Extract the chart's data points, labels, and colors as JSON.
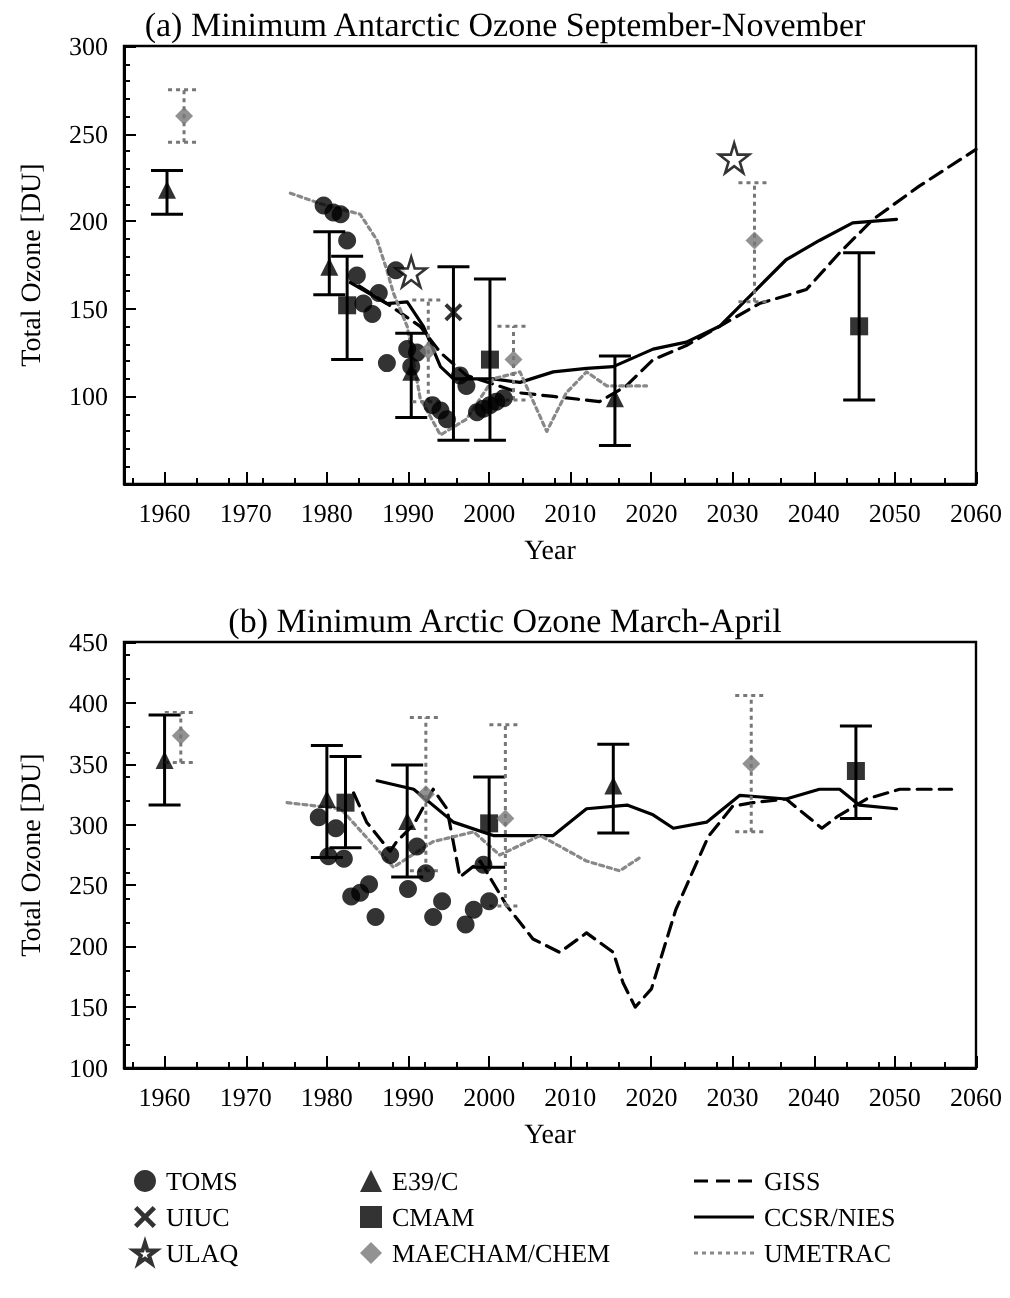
{
  "chart_data": [
    {
      "type": "scatter",
      "title": "(a) Minimum Antarctic Ozone September-November",
      "xlabel": "Year",
      "ylabel": "Total Ozone [DU]",
      "xlim": [
        1955,
        2060
      ],
      "xticks": [
        1960,
        1970,
        1980,
        1990,
        2000,
        2010,
        2020,
        2030,
        2040,
        2050,
        2060
      ],
      "ylim": [
        50,
        300
      ],
      "yticks": [
        100,
        150,
        200,
        250,
        300
      ],
      "legend": "bottom",
      "series": [
        {
          "name": "TOMS",
          "marker": "circle",
          "color": "#000000",
          "x": [
            1979.6,
            1980.8,
            1981.7,
            1982.5,
            1983.7,
            1984.5,
            1985.6,
            1986.4,
            1988.5,
            1987.4,
            1989.9,
            1991.1,
            1990.4,
            1993,
            1994,
            1994.8,
            1996.4,
            1997.2,
            1998.5,
            1999.3,
            2000.1,
            2000.9,
            2001.8
          ],
          "values": [
            209,
            205,
            204,
            189,
            169,
            153,
            147,
            159,
            172,
            119,
            127,
            125,
            117,
            95,
            92,
            87,
            112,
            106,
            91,
            93,
            95,
            97,
            99
          ]
        },
        {
          "name": "UIUC",
          "marker": "cross",
          "color": "#000000",
          "x": [
            1995.6
          ],
          "values": [
            148
          ],
          "errors": [
            [
              75,
              174
            ]
          ]
        },
        {
          "name": "ULAQ",
          "marker": "star",
          "color": "#000000",
          "x": [
            1990.4,
            2030.2
          ],
          "values": [
            171,
            236
          ]
        },
        {
          "name": "E39/C",
          "marker": "triangle",
          "color": "#000000",
          "x": [
            1960.3,
            1980.3,
            1990.4,
            2015.5
          ],
          "values": [
            218,
            174,
            114,
            99
          ],
          "errors": [
            [
              204,
              229
            ],
            [
              158,
              194
            ],
            [
              88,
              136
            ],
            [
              72,
              123
            ]
          ]
        },
        {
          "name": "CMAM",
          "marker": "square",
          "color": "#000000",
          "x": [
            1982.5,
            2000.1,
            2045.6
          ],
          "values": [
            152,
            121,
            140
          ],
          "errors": [
            [
              121,
              180
            ],
            [
              75,
              167
            ],
            [
              98,
              182
            ]
          ]
        },
        {
          "name": "MAECHAM/CHEM",
          "marker": "diamond",
          "color": "#777777",
          "line_style": "dotted",
          "x": [
            1962.4,
            1992.5,
            2003,
            2032.7
          ],
          "values": [
            260,
            126,
            121,
            189
          ],
          "errors": [
            [
              245,
              275
            ],
            [
              97,
              155
            ],
            [
              98,
              140
            ],
            [
              154,
              222
            ]
          ]
        },
        {
          "name": "GISS",
          "type": "line",
          "line_style": "dashed",
          "color": "#000000",
          "x": [
            1984,
            1987.4,
            1991.5,
            1994,
            1997.2,
            2003.8,
            2007.9,
            2013.6,
            2016.9,
            2020.2,
            2024.3,
            2028.4,
            2033.3,
            2039.1,
            2043.2,
            2047.3,
            2053,
            2060
          ],
          "values": [
            163,
            153,
            140,
            125,
            112,
            102,
            100,
            97,
            106,
            121,
            129,
            140,
            153,
            161,
            182,
            201,
            220,
            241
          ]
        },
        {
          "name": "CCSR/NIES",
          "type": "line",
          "line_style": "solid",
          "color": "#000000",
          "x": [
            1982.9,
            1987.4,
            1989.9,
            1991.9,
            1994,
            1995.6,
            2000.5,
            2003.8,
            2007.9,
            2012,
            2015.3,
            2020.2,
            2024.3,
            2028.4,
            2032.5,
            2036.6,
            2040.7,
            2044.8,
            2050.2
          ],
          "values": [
            165,
            153,
            154,
            140,
            117,
            110,
            110,
            108,
            114,
            116,
            117,
            127,
            131,
            140,
            159,
            178,
            189,
            199,
            201
          ]
        },
        {
          "name": "UMETRAC",
          "type": "line",
          "line_style": "dotted",
          "color": "#888888",
          "x": [
            1975.5,
            1979.2,
            1984.1,
            1986.2,
            1987.4,
            1988.2,
            1989.9,
            1991.5,
            1994,
            1997.2,
            2000.5,
            2003.8,
            2007.1,
            2009.5,
            2012,
            2014.5,
            2019.4
          ],
          "values": [
            216,
            210,
            204,
            189,
            172,
            159,
            140,
            99,
            78,
            87,
            110,
            114,
            80,
            102,
            114,
            106,
            106
          ]
        }
      ]
    },
    {
      "type": "scatter",
      "title": "(b) Minimum Arctic Ozone March-April",
      "xlabel": "Year",
      "ylabel": "Total Ozone [DU]",
      "xlim": [
        1955,
        2060
      ],
      "xticks": [
        1960,
        1970,
        1980,
        1990,
        2000,
        2010,
        2020,
        2030,
        2040,
        2050,
        2060
      ],
      "ylim": [
        100,
        450
      ],
      "yticks": [
        100,
        150,
        200,
        250,
        300,
        350,
        400,
        450
      ],
      "series": [
        {
          "marker": "circle",
          "color": "#000000",
          "x": [
            1979,
            1981.1,
            1980.2,
            1982.1,
            1983,
            1984.1,
            1985.2,
            1986,
            1987.8,
            1990,
            1991.1,
            1992.2,
            1993.1,
            1994.2,
            1997.1,
            1998.1,
            1999.3,
            2000
          ],
          "values": [
            306,
            297,
            274,
            272,
            241,
            244,
            251,
            224,
            275,
            247,
            282,
            260,
            224,
            237,
            218,
            230,
            267,
            237
          ]
        },
        {
          "marker": "triangle",
          "color": "#000000",
          "x": [
            1960,
            1980,
            1989.9,
            2015.3
          ],
          "values": [
            353,
            321,
            303,
            332
          ],
          "errors": [
            [
              316,
              390
            ],
            [
              273,
              365
            ],
            [
              257,
              349
            ],
            [
              293,
              366
            ]
          ]
        },
        {
          "marker": "square",
          "color": "#000000",
          "x": [
            1982.3,
            2000,
            2045.2
          ],
          "values": [
            318,
            301,
            344
          ],
          "errors": [
            [
              281,
              356
            ],
            [
              265,
              339
            ],
            [
              305,
              381
            ]
          ]
        },
        {
          "marker": "diamond",
          "color": "#777777",
          "line_style": "dotted",
          "x": [
            1962,
            1992.2,
            2002,
            2032.3
          ],
          "values": [
            373,
            325,
            305,
            350
          ],
          "errors": [
            [
              351,
              392
            ],
            [
              262,
              388
            ],
            [
              233,
              382
            ],
            [
              294,
              406
            ]
          ]
        },
        {
          "type": "line",
          "line_style": "dashed",
          "color": "#000000",
          "x": [
            1983.3,
            1984.9,
            1987.8,
            1988.6,
            1990.7,
            1993.1,
            1994.8,
            1996.4,
            1998.9,
            2002.2,
            2005.4,
            2008.7,
            2012,
            2015.3,
            2016.5,
            2018,
            2020,
            2023,
            2027,
            2030,
            2032.5,
            2036.6,
            2041,
            2043,
            2046.5,
            2050.6,
            2057
          ],
          "values": [
            326,
            302,
            278,
            286,
            300,
            329,
            313,
            257,
            270,
            233,
            206,
            195,
            211,
            195,
            170,
            150,
            165,
            230,
            290,
            315,
            318,
            321,
            297,
            307,
            321,
            329,
            329
          ]
        },
        {
          "type": "line",
          "line_style": "solid",
          "color": "#000000",
          "x": [
            1986.2,
            1990.7,
            1995.6,
            2000.5,
            2005.4,
            2007.9,
            2012,
            2017,
            2020.2,
            2022.7,
            2026.8,
            2030.9,
            2036.6,
            2040.7,
            2043.2,
            2045.6,
            2050.2
          ],
          "values": [
            336,
            329,
            302,
            291,
            291,
            291,
            313,
            316,
            308,
            297,
            302,
            324,
            321,
            329,
            329,
            316,
            313
          ]
        },
        {
          "type": "line",
          "line_style": "dotted",
          "color": "#888888",
          "x": [
            1975.1,
            1981.7,
            1988.2,
            1993.1,
            1998.1,
            2001.3,
            2006.3,
            2012,
            2016.1,
            2018.6
          ],
          "values": [
            318,
            313,
            265,
            286,
            294,
            275,
            291,
            270,
            262,
            273
          ]
        }
      ]
    }
  ]
}
